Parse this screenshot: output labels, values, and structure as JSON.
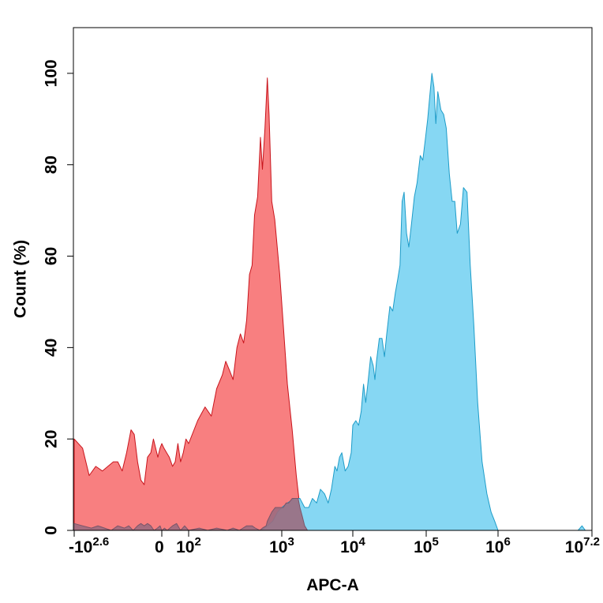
{
  "chart_data": {
    "type": "area",
    "xlabel": "APC-A",
    "ylabel": "Count  (%)",
    "x_scale": "biexponential",
    "ylim": [
      0,
      110
    ],
    "grid": false,
    "legend": "none",
    "y_ticks": [
      {
        "value": 0,
        "label": "0"
      },
      {
        "value": 20,
        "label": "20"
      },
      {
        "value": 40,
        "label": "40"
      },
      {
        "value": 60,
        "label": "60"
      },
      {
        "value": 80,
        "label": "80"
      },
      {
        "value": 100,
        "label": "100"
      }
    ],
    "x_ticks": [
      {
        "value": -398,
        "base": "-10",
        "exp": "2.6"
      },
      {
        "value": 0,
        "base": "0",
        "exp": ""
      },
      {
        "value": 100,
        "base": "10",
        "exp": "2"
      },
      {
        "value": 1000,
        "base": "10",
        "exp": "3"
      },
      {
        "value": 10000,
        "base": "10",
        "exp": "4"
      },
      {
        "value": 100000,
        "base": "10",
        "exp": "5"
      },
      {
        "value": 1000000,
        "base": "10",
        "exp": "6"
      },
      {
        "value": 15800000,
        "base": "10",
        "exp": "7.2"
      }
    ],
    "series": [
      {
        "fill": "#f87f80",
        "stroke": "#c8141c",
        "points": [
          [
            -398,
            20
          ],
          [
            -360,
            18
          ],
          [
            -330,
            12
          ],
          [
            -300,
            14
          ],
          [
            -270,
            13
          ],
          [
            -245,
            14
          ],
          [
            -220,
            15
          ],
          [
            -200,
            15
          ],
          [
            -180,
            13
          ],
          [
            -160,
            17
          ],
          [
            -140,
            22
          ],
          [
            -125,
            21
          ],
          [
            -110,
            15
          ],
          [
            -95,
            11
          ],
          [
            -80,
            10
          ],
          [
            -65,
            16
          ],
          [
            -50,
            17
          ],
          [
            -38,
            20
          ],
          [
            -28,
            18
          ],
          [
            -18,
            16
          ],
          [
            -8,
            18
          ],
          [
            0,
            19
          ],
          [
            8,
            18
          ],
          [
            18,
            17
          ],
          [
            28,
            16
          ],
          [
            40,
            14
          ],
          [
            50,
            15
          ],
          [
            60,
            19
          ],
          [
            70,
            15
          ],
          [
            80,
            17
          ],
          [
            90,
            20
          ],
          [
            100,
            19
          ],
          [
            125,
            24
          ],
          [
            150,
            27
          ],
          [
            175,
            25
          ],
          [
            200,
            31
          ],
          [
            230,
            34
          ],
          [
            250,
            37
          ],
          [
            275,
            35
          ],
          [
            300,
            33
          ],
          [
            330,
            40
          ],
          [
            360,
            43
          ],
          [
            390,
            41
          ],
          [
            420,
            46
          ],
          [
            450,
            56
          ],
          [
            480,
            58
          ],
          [
            510,
            69
          ],
          [
            550,
            73
          ],
          [
            590,
            86
          ],
          [
            620,
            79
          ],
          [
            660,
            88
          ],
          [
            700,
            99
          ],
          [
            730,
            91
          ],
          [
            780,
            72
          ],
          [
            840,
            68
          ],
          [
            950,
            56
          ],
          [
            1050,
            45
          ],
          [
            1200,
            32
          ],
          [
            1400,
            22
          ],
          [
            1600,
            12
          ],
          [
            1800,
            5
          ],
          [
            2000,
            3
          ],
          [
            2200,
            2
          ],
          [
            2500,
            1
          ],
          [
            3000,
            0.5
          ],
          [
            4000,
            0
          ],
          [
            5000,
            0.5
          ],
          [
            6000,
            0
          ]
        ]
      },
      {
        "fill": "#86d7f3",
        "stroke": "#1e9cc8",
        "points": [
          [
            600,
            0
          ],
          [
            700,
            1
          ],
          [
            800,
            2
          ],
          [
            900,
            4
          ],
          [
            1000,
            5
          ],
          [
            1200,
            6
          ],
          [
            1500,
            7
          ],
          [
            1800,
            7
          ],
          [
            2100,
            5
          ],
          [
            2400,
            5
          ],
          [
            2700,
            7
          ],
          [
            3100,
            6
          ],
          [
            3500,
            9
          ],
          [
            4000,
            8
          ],
          [
            4500,
            6
          ],
          [
            5000,
            9
          ],
          [
            5600,
            14
          ],
          [
            6000,
            13
          ],
          [
            6500,
            16
          ],
          [
            7000,
            17
          ],
          [
            7800,
            13
          ],
          [
            8600,
            14
          ],
          [
            9500,
            17
          ],
          [
            10000,
            23
          ],
          [
            11000,
            24
          ],
          [
            12000,
            23
          ],
          [
            13000,
            26
          ],
          [
            14000,
            32
          ],
          [
            15000,
            28
          ],
          [
            16000,
            32
          ],
          [
            17500,
            38
          ],
          [
            19000,
            36
          ],
          [
            20000,
            33
          ],
          [
            21000,
            37
          ],
          [
            23000,
            42
          ],
          [
            25000,
            42
          ],
          [
            27000,
            38
          ],
          [
            29000,
            43
          ],
          [
            32000,
            49
          ],
          [
            35000,
            48
          ],
          [
            38000,
            52
          ],
          [
            41000,
            55
          ],
          [
            44000,
            58
          ],
          [
            47000,
            72
          ],
          [
            50000,
            74
          ],
          [
            54000,
            65
          ],
          [
            58000,
            62
          ],
          [
            63000,
            67
          ],
          [
            69000,
            73
          ],
          [
            75000,
            76
          ],
          [
            83000,
            82
          ],
          [
            90000,
            81
          ],
          [
            98000,
            86
          ],
          [
            105000,
            90
          ],
          [
            112000,
            95
          ],
          [
            120000,
            100
          ],
          [
            128000,
            97
          ],
          [
            136000,
            89
          ],
          [
            145000,
            96
          ],
          [
            160000,
            92
          ],
          [
            175000,
            91
          ],
          [
            190000,
            88
          ],
          [
            210000,
            78
          ],
          [
            230000,
            72
          ],
          [
            250000,
            72
          ],
          [
            270000,
            65
          ],
          [
            300000,
            67
          ],
          [
            330000,
            75
          ],
          [
            370000,
            74
          ],
          [
            410000,
            58
          ],
          [
            460000,
            45
          ],
          [
            520000,
            28
          ],
          [
            600000,
            15
          ],
          [
            700000,
            8
          ],
          [
            800000,
            4
          ],
          [
            900000,
            2
          ],
          [
            1000000,
            0
          ],
          [
            10500000,
            0
          ],
          [
            11800000,
            1
          ],
          [
            13000000,
            0
          ]
        ]
      },
      {
        "fill": "#9b6c7e",
        "stroke": "#7a5568",
        "points": [
          [
            -398,
            1.5
          ],
          [
            -360,
            1
          ],
          [
            -320,
            0.5
          ],
          [
            -290,
            1
          ],
          [
            -260,
            0.5
          ],
          [
            -230,
            0
          ],
          [
            -200,
            1
          ],
          [
            -170,
            0.5
          ],
          [
            -150,
            1
          ],
          [
            -130,
            0
          ],
          [
            -110,
            1
          ],
          [
            -95,
            1.5
          ],
          [
            -80,
            1
          ],
          [
            -65,
            1.5
          ],
          [
            -50,
            1
          ],
          [
            -35,
            0
          ],
          [
            -20,
            0.5
          ],
          [
            -8,
            1
          ],
          [
            0,
            0
          ],
          [
            10,
            0.5
          ],
          [
            20,
            0
          ],
          [
            30,
            0.5
          ],
          [
            40,
            1
          ],
          [
            55,
            1.5
          ],
          [
            70,
            0
          ],
          [
            85,
            1
          ],
          [
            100,
            0
          ],
          [
            130,
            0.5
          ],
          [
            160,
            0
          ],
          [
            200,
            0.5
          ],
          [
            260,
            0
          ],
          [
            300,
            0.5
          ],
          [
            350,
            0
          ],
          [
            420,
            1
          ],
          [
            480,
            1
          ],
          [
            520,
            0.5
          ],
          [
            580,
            0
          ],
          [
            620,
            0.5
          ],
          [
            680,
            1
          ],
          [
            700,
            2
          ],
          [
            780,
            4
          ],
          [
            850,
            5
          ],
          [
            950,
            5
          ],
          [
            1050,
            5
          ],
          [
            1150,
            6
          ],
          [
            1250,
            6
          ],
          [
            1400,
            7
          ],
          [
            1550,
            7
          ],
          [
            1700,
            7
          ],
          [
            1800,
            5
          ],
          [
            1950,
            3
          ],
          [
            2100,
            1
          ],
          [
            2300,
            0
          ]
        ]
      }
    ]
  }
}
